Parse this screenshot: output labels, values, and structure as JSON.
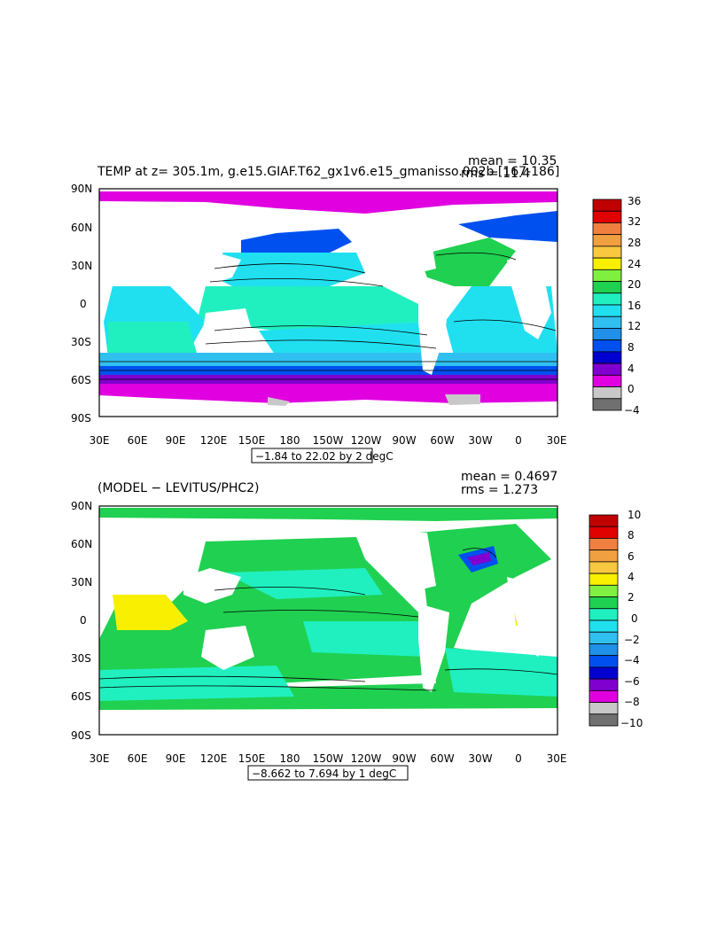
{
  "panels": [
    {
      "title": "TEMP at z= 305.1m, g.e15.GIAF.T62_gx1v6.e15_gmanisso.002b [167-186]",
      "stats": {
        "mean": "mean = 10.35",
        "rms": "rms = 11.4"
      },
      "range_label": "−1.84 to 22.02 by 2 degC",
      "lat_labels": [
        "90N",
        "60N",
        "30N",
        "0",
        "30S",
        "60S",
        "90S"
      ],
      "lon_labels": [
        "30E",
        "60E",
        "90E",
        "120E",
        "150E",
        "180",
        "150W",
        "120W",
        "90W",
        "60W",
        "30W",
        "0",
        "30E"
      ],
      "colorbar": {
        "labels": [
          "36",
          "32",
          "28",
          "24",
          "20",
          "16",
          "12",
          "8",
          "4",
          "0",
          "−4"
        ],
        "colors": [
          "#c00000",
          "#e00000",
          "#f08040",
          "#f0a040",
          "#f8c840",
          "#f8f000",
          "#80f040",
          "#20d050",
          "#20f0c0",
          "#20e0f0",
          "#30c0f0",
          "#2090e8",
          "#0050f0",
          "#0000d0",
          "#8000d0",
          "#e000e0",
          "#c8c8c8",
          "#707070"
        ]
      }
    },
    {
      "title": "(MODEL − LEVITUS/PHC2)",
      "stats": {
        "mean": "mean = 0.4697",
        "rms": "rms = 1.273"
      },
      "range_label": "−8.662 to 7.694 by 1 degC",
      "lat_labels": [
        "90N",
        "60N",
        "30N",
        "0",
        "30S",
        "60S",
        "90S"
      ],
      "lon_labels": [
        "30E",
        "60E",
        "90E",
        "120E",
        "150E",
        "180",
        "150W",
        "120W",
        "90W",
        "60W",
        "30W",
        "0",
        "30E"
      ],
      "colorbar": {
        "labels": [
          "10",
          "8",
          "6",
          "4",
          "2",
          "0",
          "−2",
          "−4",
          "−6",
          "−8",
          "−10"
        ],
        "colors": [
          "#c00000",
          "#e00000",
          "#f08040",
          "#f0a040",
          "#f8c840",
          "#f8f000",
          "#80f040",
          "#20d050",
          "#20f0c0",
          "#20e0f0",
          "#30c0f0",
          "#2090e8",
          "#0050f0",
          "#0000d0",
          "#8000d0",
          "#e000e0",
          "#c8c8c8",
          "#707070"
        ]
      }
    }
  ]
}
